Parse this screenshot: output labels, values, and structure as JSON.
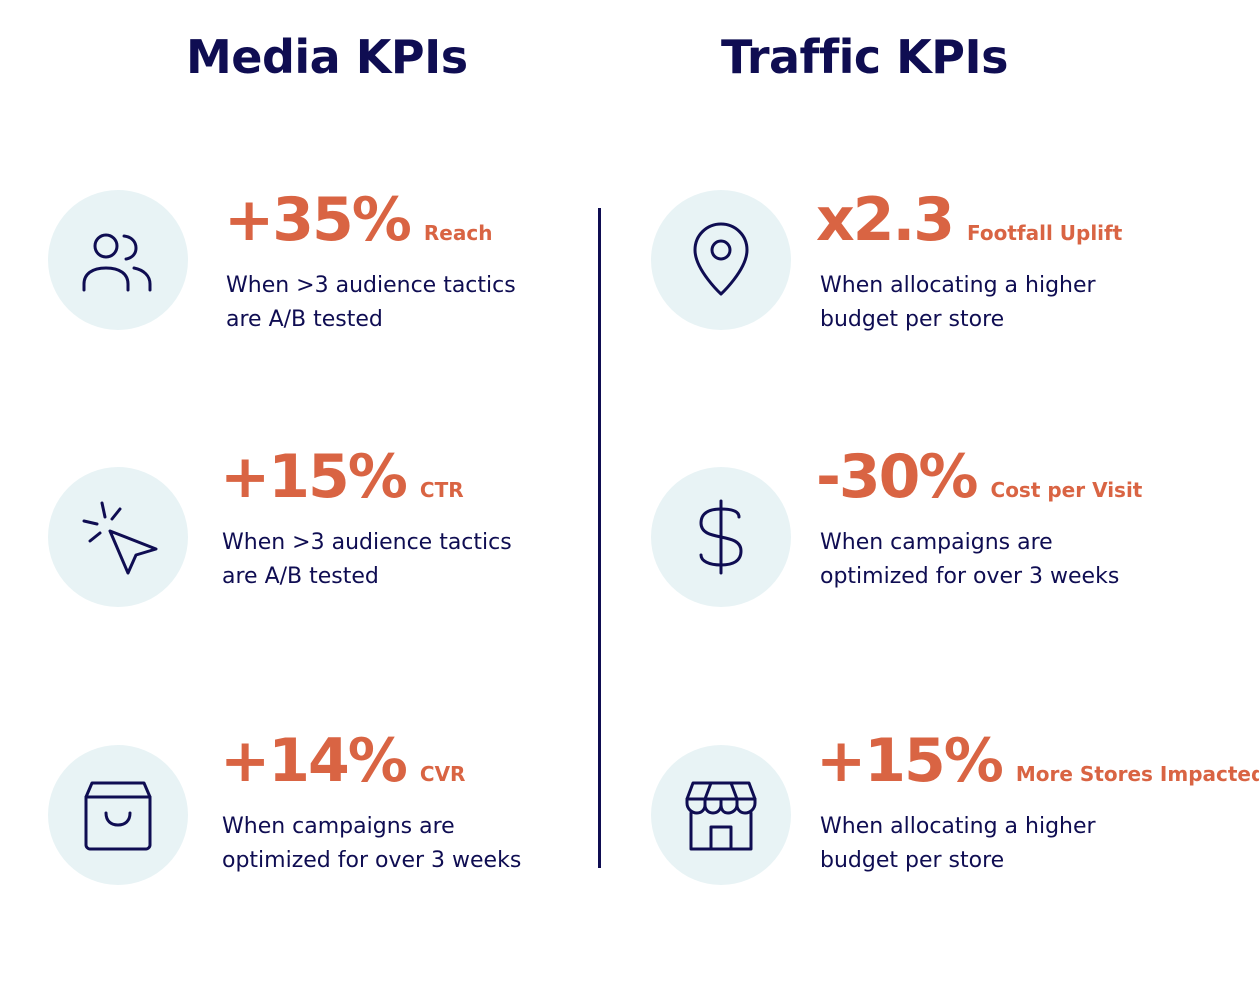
{
  "media": {
    "title": "Media KPIs",
    "items": [
      {
        "icon": "users-icon",
        "value": "+35%",
        "label": "Reach",
        "desc_line1": "When >3 audience tactics",
        "desc_line2": "are A/B tested"
      },
      {
        "icon": "cursor-click-icon",
        "value": "+15%",
        "label": "CTR",
        "desc_line1": "When >3 audience tactics",
        "desc_line2": "are A/B tested"
      },
      {
        "icon": "shopping-bag-icon",
        "value": "+14%",
        "label": "CVR",
        "desc_line1": "When campaigns are",
        "desc_line2": "optimized for over 3 weeks"
      }
    ]
  },
  "traffic": {
    "title": "Traffic KPIs",
    "items": [
      {
        "icon": "map-pin-icon",
        "value": "x2.3",
        "label": "Footfall Uplift",
        "desc_line1": "When allocating a higher",
        "desc_line2": "budget per store"
      },
      {
        "icon": "dollar-icon",
        "value": "-30%",
        "label": "Cost per Visit",
        "desc_line1": "When campaigns are",
        "desc_line2": "optimized for over 3 weeks"
      },
      {
        "icon": "storefront-icon",
        "value": "+15%",
        "label": "More Stores Impacted",
        "desc_line1": "When allocating a higher",
        "desc_line2": "budget per store"
      }
    ]
  },
  "colors": {
    "navy": "#0f0d52",
    "accent": "#d96443",
    "circle": "#e8f3f5"
  }
}
